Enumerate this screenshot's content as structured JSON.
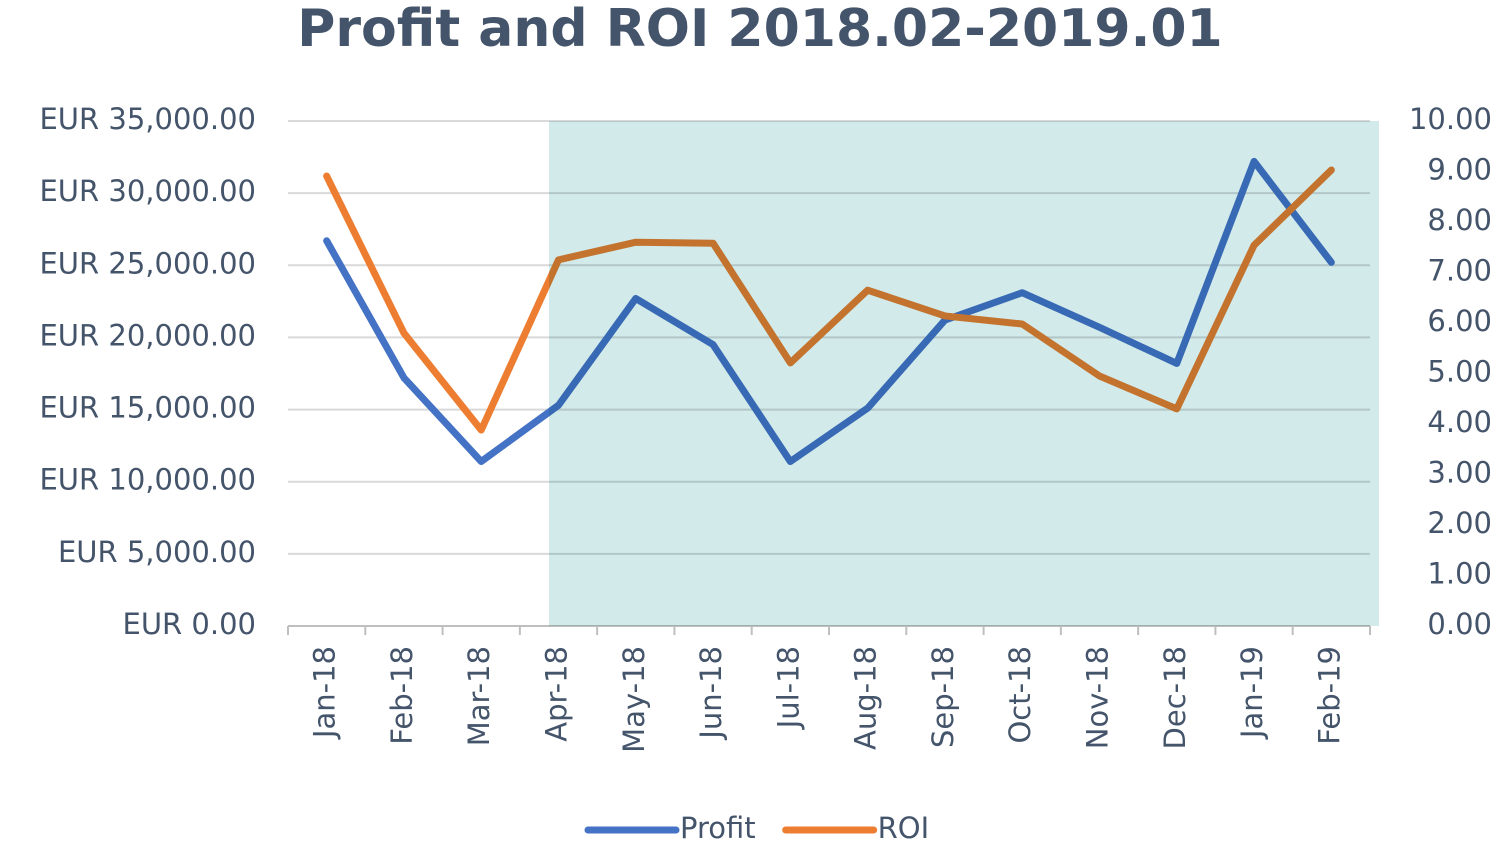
{
  "chart_data": {
    "type": "line",
    "title": "Profit and ROI 2018.02-2019.01",
    "categories": [
      "Jan-18",
      "Feb-18",
      "Mar-18",
      "Apr-18",
      "May-18",
      "Jun-18",
      "Jul-18",
      "Aug-18",
      "Sep-18",
      "Oct-18",
      "Nov-18",
      "Dec-18",
      "Jan-19",
      "Feb-19"
    ],
    "series": [
      {
        "name": "Profit",
        "color": "#4472c4",
        "values": [
          26700,
          17200,
          11400,
          15300,
          22700,
          19500,
          11400,
          15100,
          21200,
          23100,
          20700,
          18200,
          32200,
          25200
        ]
      },
      {
        "name": "ROI",
        "color": "#ed7d31",
        "axis": "y2",
        "values": [
          8.91,
          5.8,
          3.88,
          7.25,
          7.6,
          7.58,
          5.21,
          6.65,
          6.14,
          5.98,
          4.95,
          4.3,
          7.54,
          9.03
        ]
      }
    ],
    "ylim": [
      0,
      35000
    ],
    "yticks": [
      {
        "value": 0,
        "label": "EUR 0.00"
      },
      {
        "value": 5000,
        "label": "EUR 5,000.00"
      },
      {
        "value": 10000,
        "label": "EUR 10,000.00"
      },
      {
        "value": 15000,
        "label": "EUR 15,000.00"
      },
      {
        "value": 20000,
        "label": "EUR 20,000.00"
      },
      {
        "value": 25000,
        "label": "EUR 25,000.00"
      },
      {
        "value": 30000,
        "label": "EUR 30,000.00"
      },
      {
        "value": 35000,
        "label": "EUR 35,000.00"
      }
    ],
    "y2lim": [
      0,
      10
    ],
    "y2ticks": [
      {
        "value": 0,
        "label": "0.00"
      },
      {
        "value": 1,
        "label": "1.00"
      },
      {
        "value": 2,
        "label": "2.00"
      },
      {
        "value": 3,
        "label": "3.00"
      },
      {
        "value": 4,
        "label": "4.00"
      },
      {
        "value": 5,
        "label": "5.00"
      },
      {
        "value": 6,
        "label": "6.00"
      },
      {
        "value": 7,
        "label": "7.00"
      },
      {
        "value": 8,
        "label": "8.00"
      },
      {
        "value": 9,
        "label": "9.00"
      },
      {
        "value": 10,
        "label": "10.00"
      }
    ],
    "grid": true,
    "legend": "bottom"
  }
}
